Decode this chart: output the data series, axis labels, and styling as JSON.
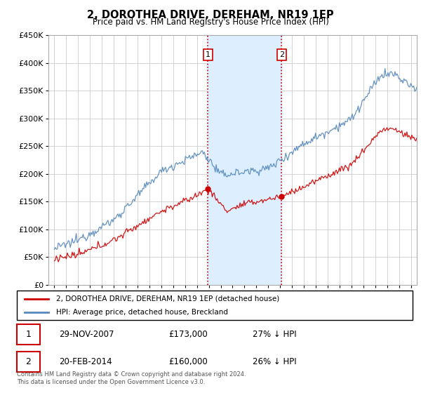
{
  "title": "2, DOROTHEA DRIVE, DEREHAM, NR19 1EP",
  "subtitle": "Price paid vs. HM Land Registry's House Price Index (HPI)",
  "footer": "Contains HM Land Registry data © Crown copyright and database right 2024.\nThis data is licensed under the Open Government Licence v3.0.",
  "legend_line1": "2, DOROTHEA DRIVE, DEREHAM, NR19 1EP (detached house)",
  "legend_line2": "HPI: Average price, detached house, Breckland",
  "sale1_date": "29-NOV-2007",
  "sale1_price": "£173,000",
  "sale1_hpi": "27% ↓ HPI",
  "sale2_date": "20-FEB-2014",
  "sale2_price": "£160,000",
  "sale2_hpi": "26% ↓ HPI",
  "property_color": "#cc0000",
  "hpi_color": "#5588bb",
  "highlight_color": "#ddeeff",
  "vline_color": "#cc0000",
  "ylim": [
    0,
    450000
  ],
  "yticks": [
    0,
    50000,
    100000,
    150000,
    200000,
    250000,
    300000,
    350000,
    400000,
    450000
  ],
  "sale1_x": 2007.92,
  "sale1_y": 173000,
  "sale2_x": 2014.12,
  "sale2_y": 160000,
  "highlight_x1": 2007.92,
  "highlight_x2": 2014.12,
  "xmin": 1994.5,
  "xmax": 2025.5,
  "xtick_start": 1995,
  "xtick_end": 2025
}
